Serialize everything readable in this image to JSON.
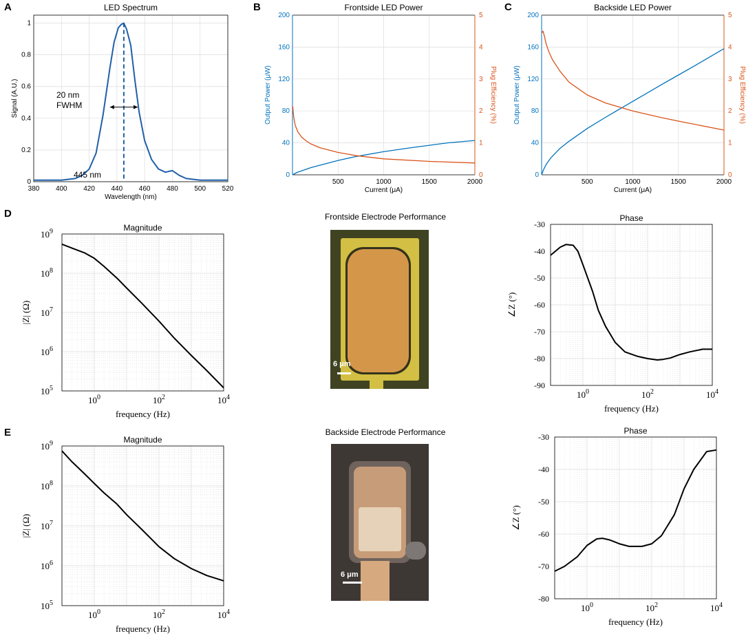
{
  "panel_labels": {
    "A": "A",
    "B": "B",
    "C": "C",
    "D": "D",
    "E": "E"
  },
  "colors": {
    "blue": "#0072BD",
    "orange": "#D95319",
    "spectrum": "#1f5fa8",
    "black": "#000000"
  },
  "photos": {
    "D": {
      "title": "Frontside Electrode Performance",
      "scale_label": "6 μm"
    },
    "E": {
      "title": "Backside Electrode Performance",
      "scale_label": "6 μm"
    }
  },
  "chart_data": [
    {
      "id": "A",
      "type": "line",
      "title": "LED Spectrum",
      "xlabel": "Wavelength (nm)",
      "ylabel": "Signal (A.U.)",
      "xlim": [
        380,
        520
      ],
      "ylim": [
        0,
        1.05
      ],
      "xticks": [
        380,
        400,
        420,
        440,
        460,
        480,
        500,
        520
      ],
      "yticks": [
        0,
        0.2,
        0.4,
        0.6,
        0.8,
        1
      ],
      "ytick_labels": [
        "0",
        "0.2",
        "0.4",
        "0.6",
        "0.8",
        "1"
      ],
      "grid": true,
      "series": [
        {
          "name": "Spectrum",
          "x": [
            380,
            400,
            410,
            415,
            420,
            425,
            430,
            435,
            438,
            441,
            443,
            445,
            447,
            450,
            453,
            456,
            460,
            465,
            470,
            475,
            480,
            485,
            490,
            500,
            510,
            520
          ],
          "y": [
            0.01,
            0.01,
            0.02,
            0.04,
            0.08,
            0.18,
            0.42,
            0.72,
            0.88,
            0.97,
            0.99,
            1.0,
            0.96,
            0.86,
            0.64,
            0.44,
            0.26,
            0.14,
            0.08,
            0.06,
            0.07,
            0.04,
            0.02,
            0.01,
            0.01,
            0.01
          ]
        }
      ],
      "annotations": {
        "fwhm_line1": "20 nm",
        "fwhm_line2": "FWHM",
        "peak_label": "445 nm",
        "peak_x": 445,
        "fwhm_x": [
          435,
          455
        ],
        "fwhm_y": 0.47
      }
    },
    {
      "id": "B",
      "type": "line",
      "title": "Frontside LED Power",
      "xlabel": "Current (μA)",
      "ylabel_left": "Output Power (μW)",
      "ylabel_right": "Plug Efficiency (%)",
      "xlim": [
        0,
        2000
      ],
      "ylim_left": [
        0,
        200
      ],
      "ylim_right": [
        0,
        5
      ],
      "xticks": [
        500,
        1000,
        1500,
        2000
      ],
      "yticks_left": [
        0,
        40,
        80,
        120,
        160,
        200
      ],
      "yticks_right": [
        0,
        1,
        2,
        3,
        4,
        5
      ],
      "grid": true,
      "series": [
        {
          "name": "Output Power",
          "axis": "left",
          "x": [
            0,
            50,
            100,
            200,
            300,
            400,
            500,
            700,
            1000,
            1300,
            1500,
            1700,
            2000
          ],
          "y": [
            0,
            3,
            5,
            9,
            12,
            15,
            18,
            23,
            29,
            34,
            37,
            40,
            43
          ]
        },
        {
          "name": "Plug Efficiency",
          "axis": "right",
          "x": [
            3,
            8,
            15,
            30,
            60,
            100,
            150,
            200,
            300,
            500,
            700,
            1000,
            1500,
            2000
          ],
          "y": [
            2.15,
            1.95,
            1.78,
            1.55,
            1.34,
            1.18,
            1.06,
            0.97,
            0.85,
            0.7,
            0.6,
            0.5,
            0.42,
            0.37
          ]
        }
      ]
    },
    {
      "id": "C",
      "type": "line",
      "title": "Backside LED Power",
      "xlabel": "Current (μA)",
      "ylabel_left": "Output Power (μW)",
      "ylabel_right": "Plug Efficiency (%)",
      "xlim": [
        0,
        2000
      ],
      "ylim_left": [
        0,
        200
      ],
      "ylim_right": [
        0,
        5
      ],
      "xticks": [
        500,
        1000,
        1500,
        2000
      ],
      "yticks_left": [
        0,
        40,
        80,
        120,
        160,
        200
      ],
      "yticks_right": [
        0,
        1,
        2,
        3,
        4,
        5
      ],
      "grid": true,
      "series": [
        {
          "name": "Output Power",
          "axis": "left",
          "x": [
            0,
            20,
            50,
            100,
            200,
            300,
            500,
            700,
            1000,
            1300,
            1500,
            1700,
            2000
          ],
          "y": [
            0,
            6,
            13,
            21,
            33,
            42,
            58,
            72,
            92,
            112,
            125,
            138,
            158
          ]
        },
        {
          "name": "Plug Efficiency",
          "axis": "right",
          "x": [
            5,
            15,
            30,
            50,
            80,
            120,
            200,
            300,
            500,
            700,
            1000,
            1300,
            1500,
            2000
          ],
          "y": [
            4.45,
            4.5,
            4.35,
            4.1,
            3.85,
            3.6,
            3.25,
            2.9,
            2.5,
            2.25,
            2.0,
            1.8,
            1.68,
            1.4
          ]
        }
      ]
    },
    {
      "id": "D-mag",
      "type": "line",
      "title": "Magnitude",
      "xlabel": "frequency (Hz)",
      "ylabel": "|Z| (Ω)",
      "xscale": "log",
      "yscale": "log",
      "xlim": [
        0.1,
        10000
      ],
      "ylim": [
        100000,
        1000000000
      ],
      "xtick_exps": [
        "0",
        "2",
        "4"
      ],
      "ytick_exps": [
        "5",
        "6",
        "7",
        "8",
        "9"
      ],
      "grid": true,
      "series": [
        {
          "name": "|Z|",
          "x": [
            0.1,
            0.2,
            0.5,
            1,
            2,
            5,
            10,
            30,
            100,
            300,
            1000,
            3000,
            10000
          ],
          "y": [
            550000000,
            440000000,
            330000000,
            240000000,
            150000000,
            75000000,
            42000000,
            17000000,
            6000000,
            2200000,
            800000,
            330000,
            120000
          ]
        }
      ]
    },
    {
      "id": "D-phase",
      "type": "line",
      "title": "Phase",
      "xlabel": "frequency (Hz)",
      "ylabel": "∠Z (°)",
      "xscale": "log",
      "xlim": [
        0.1,
        10000
      ],
      "ylim": [
        -90,
        -30
      ],
      "xtick_exps": [
        "0",
        "2",
        "4"
      ],
      "yticks": [
        -90,
        -80,
        -70,
        -60,
        -50,
        -40,
        -30
      ],
      "grid": true,
      "series": [
        {
          "name": "Phase",
          "x": [
            0.1,
            0.2,
            0.3,
            0.5,
            0.7,
            1,
            2,
            3,
            5,
            10,
            20,
            50,
            100,
            200,
            300,
            500,
            1000,
            2000,
            5000,
            10000
          ],
          "y": [
            -41.5,
            -38.5,
            -37.5,
            -37.8,
            -40,
            -45,
            -55,
            -62,
            -68,
            -74,
            -77.5,
            -79.2,
            -80,
            -80.5,
            -80.3,
            -79.8,
            -78.5,
            -77.5,
            -76.5,
            -76.5
          ]
        }
      ]
    },
    {
      "id": "E-mag",
      "type": "line",
      "title": "Magnitude",
      "xlabel": "frequency (Hz)",
      "ylabel": "|Z| (Ω)",
      "xscale": "log",
      "yscale": "log",
      "xlim": [
        0.1,
        10000
      ],
      "ylim": [
        100000,
        1000000000
      ],
      "xtick_exps": [
        "0",
        "2",
        "4"
      ],
      "ytick_exps": [
        "5",
        "6",
        "7",
        "8",
        "9"
      ],
      "grid": true,
      "series": [
        {
          "name": "|Z|",
          "x": [
            0.1,
            0.2,
            0.5,
            1,
            2,
            5,
            10,
            30,
            100,
            300,
            1000,
            3000,
            10000
          ],
          "y": [
            750000000,
            410000000,
            200000000,
            115000000,
            67000000,
            35000000,
            19000000,
            8000000,
            3000000,
            1500000,
            850000,
            570000,
            420000
          ]
        }
      ]
    },
    {
      "id": "E-phase",
      "type": "line",
      "title": "Phase",
      "xlabel": "frequency (Hz)",
      "ylabel": "∠Z (°)",
      "xscale": "log",
      "xlim": [
        0.1,
        10000
      ],
      "ylim": [
        -80,
        -30
      ],
      "xtick_exps": [
        "0",
        "2",
        "4"
      ],
      "yticks": [
        -80,
        -70,
        -60,
        -50,
        -40,
        -30
      ],
      "grid": true,
      "series": [
        {
          "name": "Phase",
          "x": [
            0.1,
            0.2,
            0.5,
            1,
            2,
            3,
            5,
            10,
            20,
            50,
            100,
            200,
            500,
            1000,
            2000,
            5000,
            10000
          ],
          "y": [
            -71.5,
            -70,
            -67,
            -63.5,
            -61.5,
            -61.3,
            -61.8,
            -63,
            -63.8,
            -63.8,
            -63,
            -60.5,
            -54,
            -46,
            -40,
            -34.5,
            -34
          ]
        }
      ]
    }
  ]
}
